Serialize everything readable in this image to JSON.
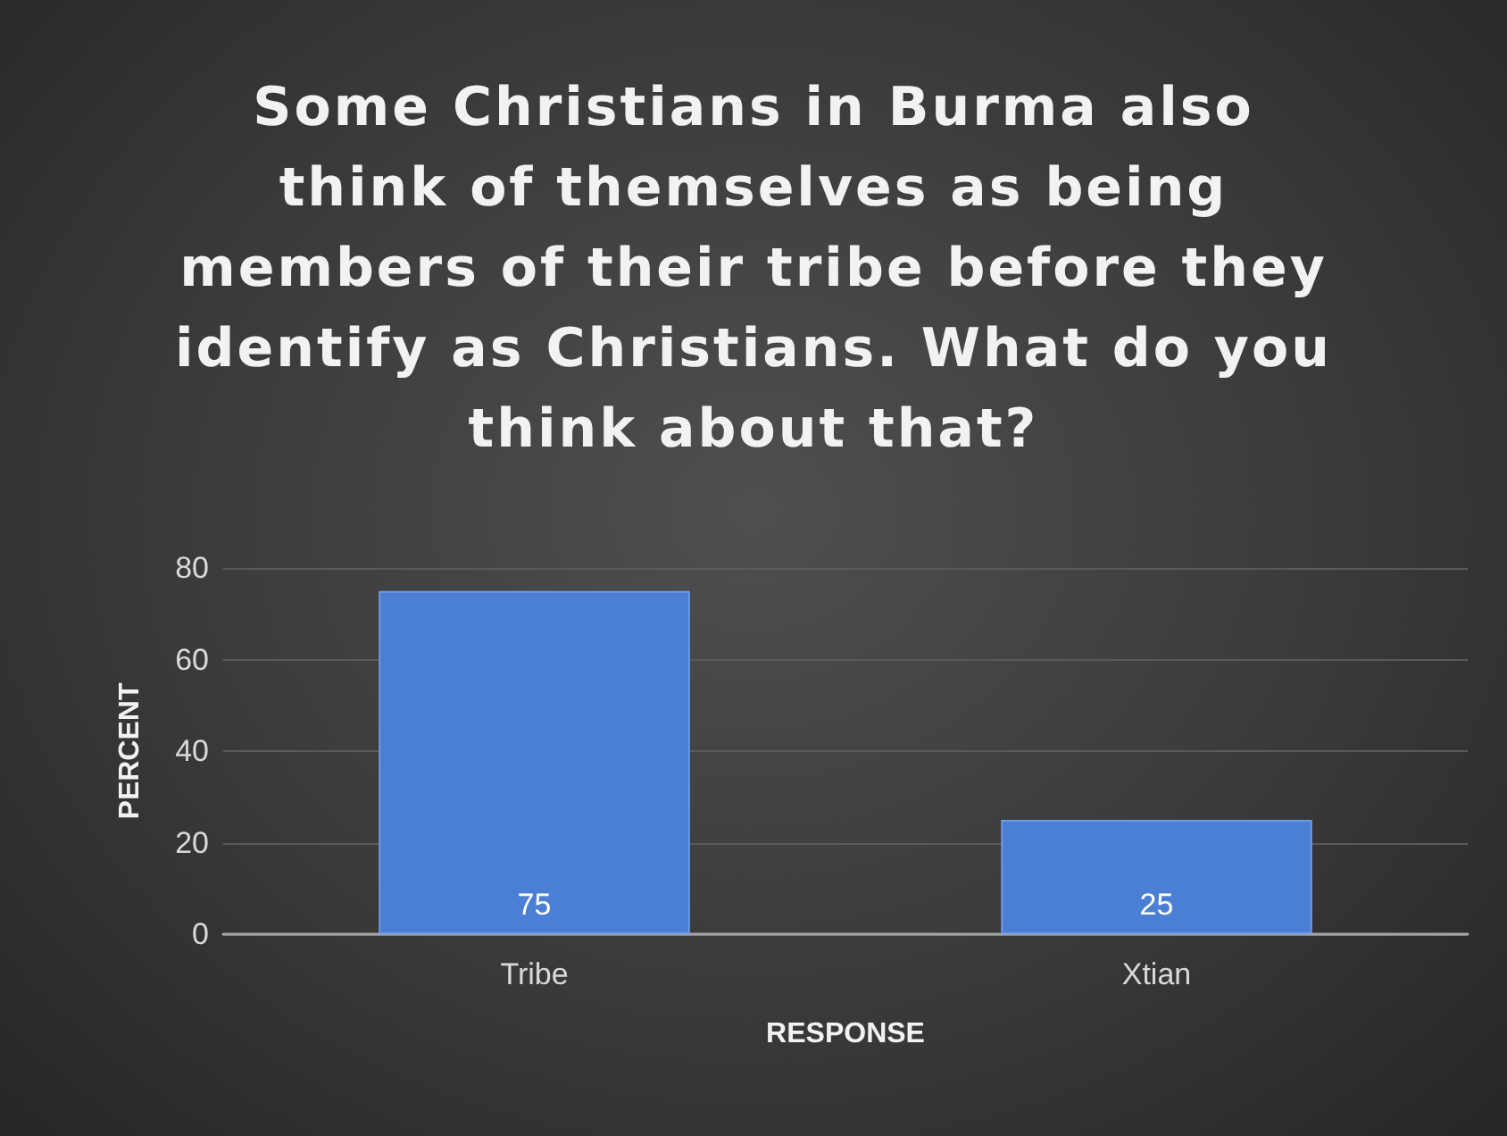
{
  "chart_data": {
    "type": "bar",
    "title": "Some Christians in Burma also think of themselves as being members of their tribe before they identify as Christians. What do you think about that?",
    "categories": [
      "Tribe",
      "Xtian"
    ],
    "values": [
      75,
      25
    ],
    "color": "#4a7fd4",
    "xlabel": "RESPONSE",
    "ylabel": "PERCENT",
    "ylim": [
      0,
      80
    ],
    "yticks": [
      0,
      20,
      40,
      60,
      80
    ],
    "grid": "y",
    "data_labels": true
  }
}
